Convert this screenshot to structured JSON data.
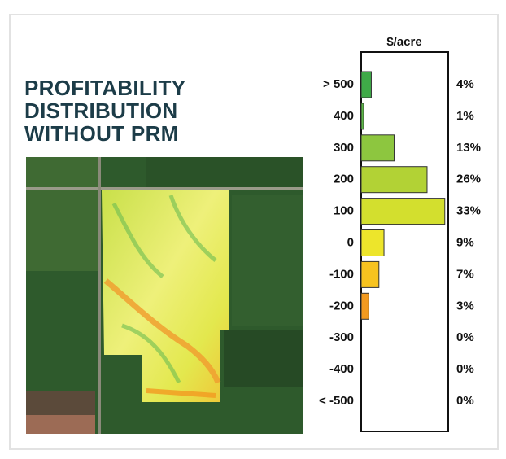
{
  "chart_data": {
    "type": "hbar",
    "title": "PROFITABILITY DISTRIBUTION WITHOUT PRM",
    "axis_label": "$/acre",
    "categories": [
      "> 500",
      "400",
      "300",
      "200",
      "100",
      "0",
      "-100",
      "-200",
      "-300",
      "-400",
      "< -500"
    ],
    "values": [
      4,
      1,
      13,
      26,
      33,
      9,
      7,
      3,
      0,
      0,
      0
    ],
    "value_labels": [
      "4%",
      "1%",
      "13%",
      "26%",
      "33%",
      "9%",
      "7%",
      "3%",
      "0%",
      "0%",
      "0%"
    ],
    "colors": [
      "#3faa48",
      "#5cb847",
      "#8dc63f",
      "#b2d235",
      "#d3df2e",
      "#ede52b",
      "#f7c31f",
      "#f29a20",
      null,
      null,
      null
    ],
    "xlim": [
      0,
      35
    ]
  }
}
